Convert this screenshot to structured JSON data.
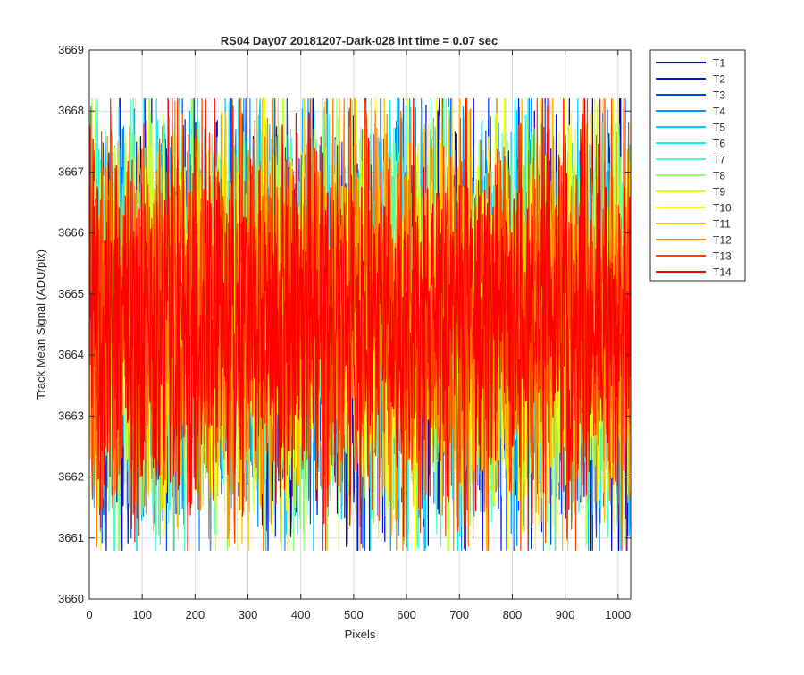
{
  "chart_data": {
    "type": "line",
    "title": "RS04 Day07 20181207-Dark-028 int time = 0.07 sec",
    "xlabel": "Pixels",
    "ylabel": "Track Mean Signal (ADU/pix)",
    "xlim": [
      0,
      1024
    ],
    "ylim": [
      3660,
      3669
    ],
    "xticks": [
      "0",
      "100",
      "200",
      "300",
      "400",
      "500",
      "600",
      "700",
      "800",
      "900",
      "1000"
    ],
    "yticks": [
      "3660",
      "3661",
      "3662",
      "3663",
      "3664",
      "3665",
      "3666",
      "3667",
      "3668",
      "3669"
    ],
    "grid": true,
    "legend_position": "outside-right-top",
    "noise": {
      "mean": 3664.6,
      "n_points": 1024,
      "typical_min": 3662.0,
      "typical_max": 3667.6,
      "extreme_min": 3660.8,
      "extreme_max": 3668.2
    },
    "series": [
      {
        "name": "T1",
        "color": "#0000bf"
      },
      {
        "name": "T2",
        "color": "#0010e0"
      },
      {
        "name": "T3",
        "color": "#0044ff"
      },
      {
        "name": "T4",
        "color": "#0090ff"
      },
      {
        "name": "T5",
        "color": "#00c8ff"
      },
      {
        "name": "T6",
        "color": "#10f0f0"
      },
      {
        "name": "T7",
        "color": "#50ffc0"
      },
      {
        "name": "T8",
        "color": "#90ff70"
      },
      {
        "name": "T9",
        "color": "#d0ff30"
      },
      {
        "name": "T10",
        "color": "#ffff00"
      },
      {
        "name": "T11",
        "color": "#ffc000"
      },
      {
        "name": "T12",
        "color": "#ff8000"
      },
      {
        "name": "T13",
        "color": "#ff4000"
      },
      {
        "name": "T14",
        "color": "#ff0000"
      }
    ]
  }
}
